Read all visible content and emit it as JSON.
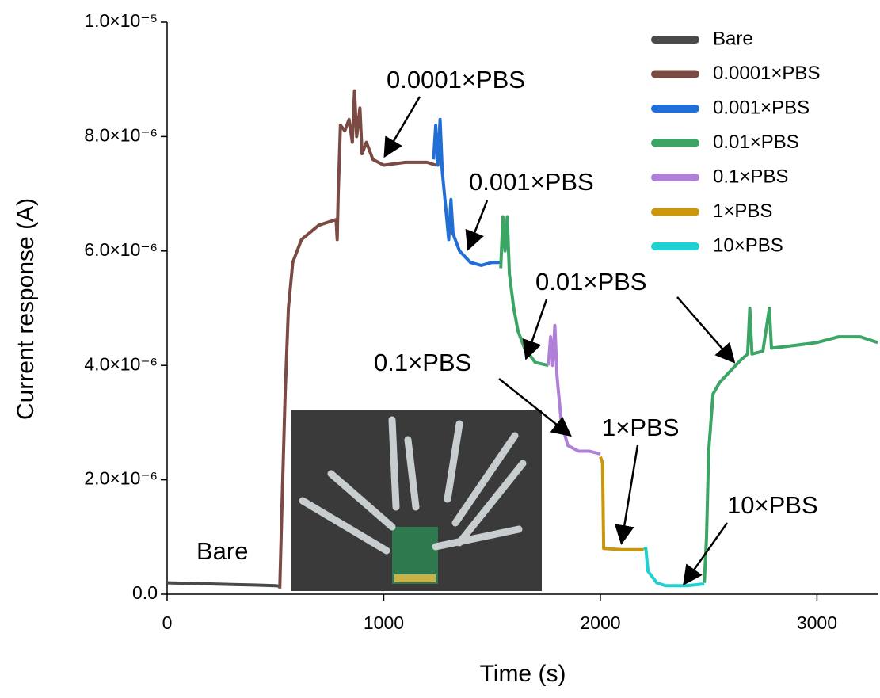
{
  "chart_data": {
    "type": "line",
    "x_label": "Time (s)",
    "y_label": "Current response (A)",
    "xlim": [
      0,
      3280
    ],
    "xticks": [
      0,
      1000,
      2000,
      3000
    ],
    "ylim": [
      0,
      1e-05
    ],
    "yticks": [
      {
        "value": 0,
        "label": "0.0"
      },
      {
        "value": 2e-06,
        "label": "2.0×10⁻⁶"
      },
      {
        "value": 4e-06,
        "label": "4.0×10⁻⁶"
      },
      {
        "value": 6e-06,
        "label": "6.0×10⁻⁶"
      },
      {
        "value": 8e-06,
        "label": "8.0×10⁻⁶"
      },
      {
        "value": 1e-05,
        "label": "1.0×10⁻⁵"
      }
    ],
    "legend": "top-right",
    "series": [
      {
        "name": "Bare",
        "color": "#4a4a4a",
        "x": [
          0,
          100,
          200,
          300,
          400,
          500,
          520
        ],
        "values": [
          2e-07,
          1.9e-07,
          1.8e-07,
          1.7e-07,
          1.6e-07,
          1.5e-07,
          1.4e-07
        ]
      },
      {
        "name": "0.0001×PBS",
        "color": "#7b4a43",
        "x": [
          520,
          530,
          545,
          560,
          580,
          620,
          700,
          780,
          785,
          790,
          800,
          820,
          840,
          855,
          865,
          875,
          890,
          900,
          920,
          950,
          1000,
          1100,
          1200,
          1240
        ],
        "values": [
          1e-07,
          1.5e-06,
          3.5e-06,
          5e-06,
          5.8e-06,
          6.2e-06,
          6.45e-06,
          6.55e-06,
          6.2e-06,
          7e-06,
          8.2e-06,
          8.1e-06,
          8.3e-06,
          7.9e-06,
          8.8e-06,
          8e-06,
          8.5e-06,
          7.7e-06,
          7.9e-06,
          7.6e-06,
          7.5e-06,
          7.55e-06,
          7.55e-06,
          7.5e-06
        ]
      },
      {
        "name": "0.001×PBS",
        "color": "#1f6fd6",
        "x": [
          1230,
          1240,
          1250,
          1260,
          1270,
          1290,
          1300,
          1310,
          1320,
          1350,
          1400,
          1450,
          1500,
          1540
        ],
        "values": [
          7.6e-06,
          8.2e-06,
          7.5e-06,
          8.3e-06,
          7.4e-06,
          6.6e-06,
          6.2e-06,
          6.9e-06,
          6.3e-06,
          6e-06,
          5.8e-06,
          5.75e-06,
          5.8e-06,
          5.8e-06
        ]
      },
      {
        "name": "0.01×PBS",
        "color": "#3aa565",
        "x": [
          1540,
          1550,
          1560,
          1570,
          1580,
          1600,
          1620,
          1650,
          1700,
          1760,
          2100,
          2480,
          2490,
          2500,
          2520,
          2550,
          2600,
          2650,
          2680,
          2690,
          2700,
          2750,
          2780,
          2790,
          2900,
          3000,
          3100,
          3200,
          3280
        ],
        "values": [
          5.7e-06,
          6.6e-06,
          6e-06,
          6.6e-06,
          5.6e-06,
          5e-06,
          4.6e-06,
          4.3e-06,
          4.05e-06,
          4e-06,
          null,
          2e-07,
          1e-06,
          2.5e-06,
          3.5e-06,
          3.7e-06,
          3.9e-06,
          4.1e-06,
          4.2e-06,
          5e-06,
          4.2e-06,
          4.25e-06,
          5e-06,
          4.3e-06,
          4.35e-06,
          4.4e-06,
          4.5e-06,
          4.5e-06,
          4.4e-06
        ]
      },
      {
        "name": "0.1×PBS",
        "color": "#b07fd8",
        "x": [
          1760,
          1770,
          1780,
          1790,
          1800,
          1820,
          1850,
          1900,
          1950,
          2000
        ],
        "values": [
          4e-06,
          4.5e-06,
          4e-06,
          4.7e-06,
          3.8e-06,
          3e-06,
          2.6e-06,
          2.5e-06,
          2.5e-06,
          2.45e-06
        ]
      },
      {
        "name": "1×PBS",
        "color": "#c9960c",
        "x": [
          2000,
          2010,
          2015,
          2100,
          2200
        ],
        "values": [
          2.4e-06,
          2.3e-06,
          8e-07,
          7.8e-07,
          7.8e-07
        ]
      },
      {
        "name": "10×PBS",
        "color": "#1fd1d1",
        "x": [
          2200,
          2210,
          2220,
          2260,
          2300,
          2400,
          2480
        ],
        "values": [
          8e-07,
          8e-07,
          4e-07,
          2e-07,
          1.5e-07,
          1.5e-07,
          1.8e-07
        ]
      }
    ],
    "annotations": [
      "0.0001×PBS",
      "0.001×PBS",
      "0.01×PBS",
      "0.1×PBS",
      "1×PBS",
      "10×PBS",
      "Bare"
    ]
  }
}
